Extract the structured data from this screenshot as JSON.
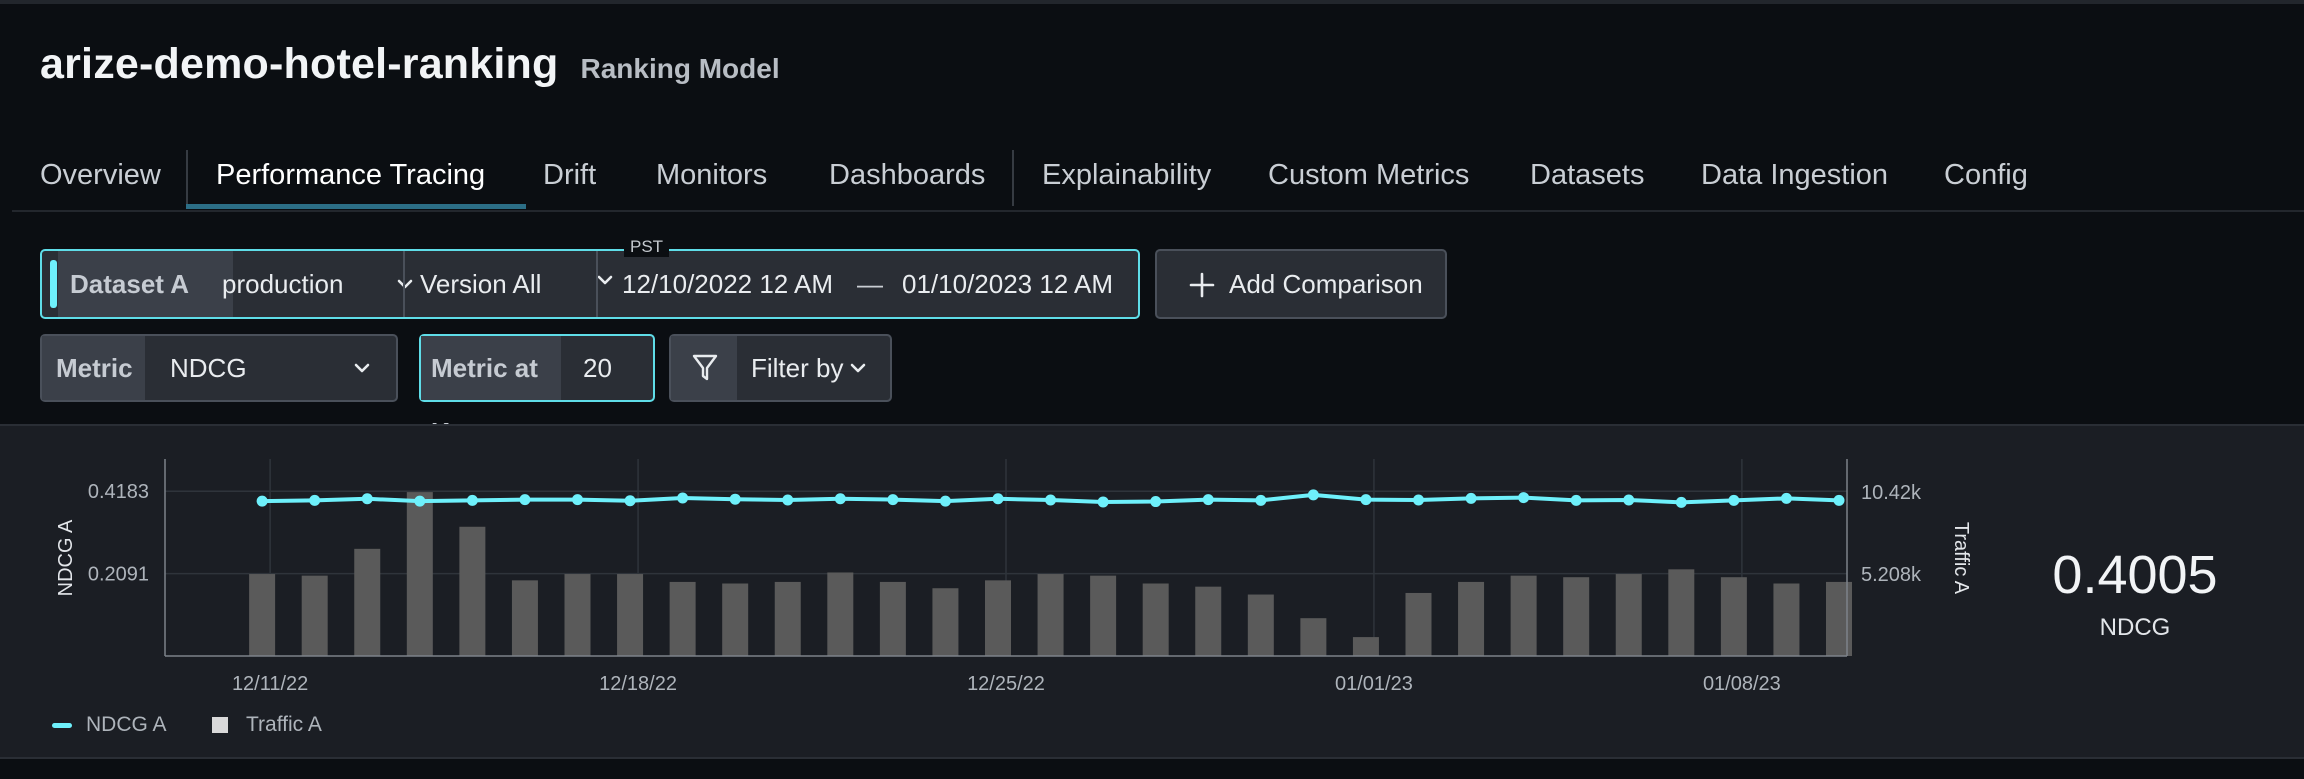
{
  "header": {
    "model_name": "arize-demo-hotel-ranking",
    "model_type": "Ranking Model"
  },
  "tabs": [
    {
      "label": "Overview",
      "active": false
    },
    {
      "label": "Performance Tracing",
      "active": true
    },
    {
      "label": "Drift",
      "active": false
    },
    {
      "label": "Monitors",
      "active": false
    },
    {
      "label": "Dashboards",
      "active": false
    },
    {
      "label": "Explainability",
      "active": false
    },
    {
      "label": "Custom Metrics",
      "active": false
    },
    {
      "label": "Datasets",
      "active": false
    },
    {
      "label": "Data Ingestion",
      "active": false
    },
    {
      "label": "Config",
      "active": false
    }
  ],
  "dataset": {
    "label": "Dataset A",
    "environment": "production",
    "version": "Version All",
    "timezone": "PST",
    "start_date": "12/10/2022 12 AM",
    "date_separator": "—",
    "end_date": "01/10/2023 12 AM"
  },
  "add_comparison": {
    "label": "Add Comparison"
  },
  "metric": {
    "label": "Metric",
    "value": "NDCG"
  },
  "metric_at_k": {
    "label": "Metric at K",
    "value": "20"
  },
  "filter": {
    "label": "Filter by"
  },
  "summary": {
    "value": "0.4005",
    "label": "NDCG"
  },
  "legend": [
    {
      "name": "NDCG A",
      "type": "line",
      "color": "#6ef0fb"
    },
    {
      "name": "Traffic A",
      "type": "bar",
      "color": "#d9d9d9"
    }
  ],
  "icons": {
    "dataset_dropdown": "chevron-down-icon",
    "version_dropdown": "chevron-down-icon",
    "add": "plus-icon",
    "metric_dropdown": "chevron-down-icon",
    "filter": "filter-funnel-icon",
    "filter_dropdown": "chevron-down-icon"
  },
  "colors": {
    "accent": "#6ef0fb",
    "tab_underline": "#2c6e86",
    "bar": "#5a5a5a"
  },
  "chart_data": {
    "type": "line",
    "x_start": "12/09/22",
    "x_end": "01/10/23",
    "x_tick_labels": [
      "12/11/22",
      "12/18/22",
      "12/25/22",
      "01/01/23",
      "01/08/23"
    ],
    "x_tick_dates": [
      "12/11/22",
      "12/18/22",
      "12/25/22",
      "01/01/23",
      "01/08/23"
    ],
    "ylabel_left": "NDCG A",
    "ylabel_right": "Traffic A",
    "y_left_ticks": [
      "0.4183",
      "0.2091"
    ],
    "y_left_tick_values": [
      0.4183,
      0.2091
    ],
    "y_right_ticks": [
      "10.42k",
      "5.208k"
    ],
    "y_right_tick_values": [
      10420,
      5208
    ],
    "y_left_range": [
      0,
      0.5
    ],
    "y_right_range": [
      0,
      12500
    ],
    "grid": true,
    "legend_position": "bottom-left",
    "dates": [
      "12/11/22",
      "12/12/22",
      "12/13/22",
      "12/14/22",
      "12/15/22",
      "12/16/22",
      "12/17/22",
      "12/18/22",
      "12/19/22",
      "12/20/22",
      "12/21/22",
      "12/22/22",
      "12/23/22",
      "12/24/22",
      "12/25/22",
      "12/26/22",
      "12/27/22",
      "12/28/22",
      "12/29/22",
      "12/30/22",
      "12/31/22",
      "01/01/23",
      "01/02/23",
      "01/03/23",
      "01/04/23",
      "01/05/23",
      "01/06/23",
      "01/07/23",
      "01/08/23",
      "01/09/23",
      "01/10/23"
    ],
    "series": [
      {
        "name": "NDCG A",
        "kind": "line",
        "axis": "left",
        "values": [
          0.393,
          0.395,
          0.399,
          0.393,
          0.395,
          0.397,
          0.397,
          0.394,
          0.401,
          0.398,
          0.396,
          0.399,
          0.397,
          0.393,
          0.399,
          0.396,
          0.391,
          0.392,
          0.397,
          0.395,
          0.409,
          0.397,
          0.396,
          0.4,
          0.402,
          0.395,
          0.396,
          0.39,
          0.395,
          0.4,
          0.395
        ]
      },
      {
        "name": "Traffic A",
        "kind": "bar",
        "axis": "right",
        "values": [
          5200,
          5100,
          6800,
          10400,
          8200,
          4800,
          5200,
          5200,
          4700,
          4600,
          4700,
          5300,
          4700,
          4300,
          4800,
          5200,
          5100,
          4600,
          4400,
          3900,
          2400,
          1200,
          4000,
          4700,
          5100,
          5000,
          5200,
          5500,
          5000,
          4600,
          4700
        ]
      }
    ]
  }
}
